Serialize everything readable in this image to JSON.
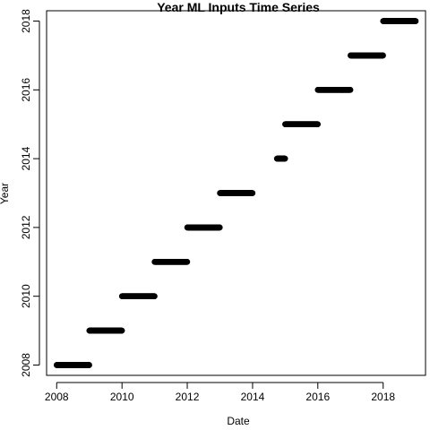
{
  "chart_data": {
    "type": "scatter",
    "title": "Year ML Inputs Time Series",
    "xlabel": "Date",
    "ylabel": "Year",
    "x_axis_type": "date",
    "xlim": [
      "2007-09-10",
      "2019-04-20"
    ],
    "ylim": [
      2007.7,
      2018.3
    ],
    "xticks": [
      "2008",
      "2010",
      "2012",
      "2014",
      "2016",
      "2018"
    ],
    "yticks": [
      "2008",
      "2010",
      "2012",
      "2014",
      "2016",
      "2018"
    ],
    "grid": false,
    "marker": "filled-circle",
    "marker_color": "#000000",
    "series": [
      {
        "year": 2008,
        "x_start": "2008-01-01",
        "x_end": "2008-12-31"
      },
      {
        "year": 2009,
        "x_start": "2009-01-01",
        "x_end": "2009-12-31"
      },
      {
        "year": 2010,
        "x_start": "2010-01-01",
        "x_end": "2010-12-31"
      },
      {
        "year": 2011,
        "x_start": "2011-01-01",
        "x_end": "2011-12-31"
      },
      {
        "year": 2012,
        "x_start": "2012-01-01",
        "x_end": "2012-12-31"
      },
      {
        "year": 2013,
        "x_start": "2013-01-01",
        "x_end": "2013-12-31"
      },
      {
        "year": 2014,
        "x_start": "2014-10-01",
        "x_end": "2014-12-31"
      },
      {
        "year": 2015,
        "x_start": "2015-01-01",
        "x_end": "2015-12-31"
      },
      {
        "year": 2016,
        "x_start": "2016-01-01",
        "x_end": "2016-12-31"
      },
      {
        "year": 2017,
        "x_start": "2017-01-01",
        "x_end": "2017-12-31"
      },
      {
        "year": 2018,
        "x_start": "2018-01-01",
        "x_end": "2018-12-31"
      }
    ]
  }
}
